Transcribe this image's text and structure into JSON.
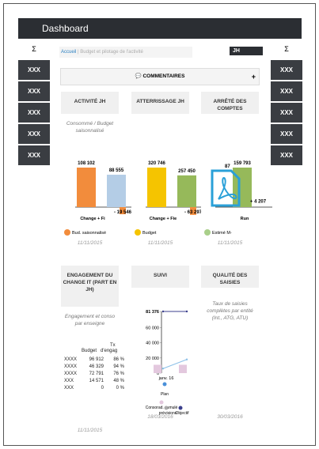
{
  "header": {
    "title": "Dashboard",
    "user": "JH"
  },
  "sidebar_left": {
    "sigma": "Σ",
    "items": [
      "XXX",
      "XXX",
      "XXX",
      "XXX",
      "XXX"
    ]
  },
  "sidebar_right": {
    "sigma": "Σ",
    "items": [
      "XXX",
      "XXX",
      "XXX",
      "XXX",
      "XXX"
    ]
  },
  "breadcrumb": {
    "home": "Accueil",
    "current": "Budget et pilotage de l'activité"
  },
  "comments": {
    "label": "COMMENTAIRES",
    "add": "+"
  },
  "cards": [
    {
      "title": "ACTIVITÉ JH",
      "subtitle": "Consommé / Budget saisonnalisé",
      "values": [
        108102,
        88555,
        -19546
      ],
      "value_labels": [
        "108 102",
        "88 555",
        "- 19 546"
      ],
      "colors": [
        "#f28c3c",
        "#b4cde6",
        "#f28c3c"
      ],
      "axis_label": "Change + Fi",
      "legend": "Bud. saisonnalisé",
      "legend_color": "#f28c3c",
      "date": "11/11/2015"
    },
    {
      "title": "ATTERRISSAGE JH",
      "values": [
        320746,
        257450,
        -63297
      ],
      "value_labels": [
        "320 746",
        "257 450",
        "- 63 297"
      ],
      "colors": [
        "#f5c400",
        "#96b95a",
        "#f28c3c"
      ],
      "axis_label": "Change + Fie",
      "legend": "Budget",
      "legend_color": "#f5c400",
      "date": "11/11/2015"
    },
    {
      "title": "ARRÊTÉ DES COMPTES",
      "clipped_label": "87",
      "values": [
        159793,
        4207
      ],
      "value_labels": [
        "159 793",
        "+ 4 207"
      ],
      "colors": [
        "#96b95a",
        "#96b95a"
      ],
      "axis_label": "Run",
      "legend": "Estimé M-",
      "legend_color": "#a9cf8a",
      "date": "11/11/2015"
    },
    {
      "title": "ENGAGEMENT DU CHANGE IT (PART EN JH)",
      "subtitle": "Engagement et conso par enseigne",
      "table": {
        "header": [
          "Tx",
          "Budget",
          "d'engag"
        ],
        "rows": [
          [
            "XXXX",
            "96 912",
            "86 %"
          ],
          [
            "XXXX",
            "46 329",
            "94 %"
          ],
          [
            "XXXX",
            "72 791",
            "76 %"
          ],
          [
            "XXX",
            "14 571",
            "48 %"
          ],
          [
            "XXX",
            "0",
            "0 %"
          ]
        ]
      },
      "date": "11/11/2015"
    },
    {
      "title": "SUIVI",
      "ylim": [
        0,
        81376
      ],
      "yticks": [
        0,
        20000,
        40000,
        60000,
        {
          "value": 81376,
          "label": "81 376"
        }
      ],
      "yticks_labels": [
        "0",
        "20 000",
        "40 000",
        "60 000"
      ],
      "x_label": "janv. 16",
      "series": [
        {
          "name": "Objectif",
          "color": "#3b3f8c",
          "values": [
            81376,
            81376
          ]
        },
        {
          "name": "prévisions",
          "color": "#8cc0e8",
          "values": [
            6000,
            18000
          ]
        }
      ],
      "bars": [
        11000,
        11000
      ],
      "bar_color": "#e3c8de",
      "legend": [
        "Plan",
        "Consorad. cumulé",
        "prévisions",
        "Objectif"
      ],
      "date": "18/03/2016"
    },
    {
      "title": "QUALITÉ DES SAISIES",
      "subtitle": "Taux de saisies complètes par entité (Int., ATG, ATU)",
      "date": "30/03/2016"
    }
  ]
}
